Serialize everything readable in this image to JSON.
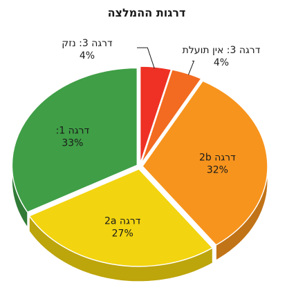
{
  "chart_data": {
    "type": "pie",
    "title": "דרגות ההמלצה",
    "three_d": true,
    "slices": [
      {
        "label": "דרגה 3: נזק",
        "value": 4,
        "value_label": "4%",
        "color": "#ee3124",
        "label_placement": "outside-left"
      },
      {
        "label": "דרגה 3: אין תועלת",
        "value": 4,
        "value_label": "4%",
        "color": "#f26b21",
        "label_placement": "outside-right"
      },
      {
        "label": "דרגה 2b",
        "value": 32,
        "value_label": "32%",
        "color": "#f7941d",
        "label_placement": "inside"
      },
      {
        "label": "דרגה 2a",
        "value": 27,
        "value_label": "27%",
        "color": "#f2d410",
        "label_placement": "inside"
      },
      {
        "label": "דרגה 1:",
        "value": 33,
        "value_label": "33%",
        "color": "#3f9e46",
        "label_placement": "inside"
      }
    ]
  }
}
